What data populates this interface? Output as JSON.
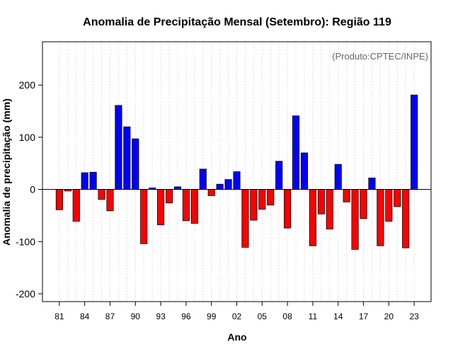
{
  "chart_data": {
    "type": "bar",
    "title": "Anomalia de Precipitação Mensal (Setembro): Região 119",
    "xlabel": "Ano",
    "ylabel": "Anomalia de precipitação (mm)",
    "credit": "(Produto:CPTEC/INPE)",
    "ylim": [
      -215,
      283
    ],
    "yticks": [
      -200,
      -100,
      0,
      100,
      200
    ],
    "ytick_labels": [
      "-200",
      "-100",
      "0",
      "100",
      "200"
    ],
    "xtick_labels": [
      "81",
      "84",
      "87",
      "90",
      "93",
      "96",
      "99",
      "02",
      "05",
      "08",
      "11",
      "14",
      "17",
      "20",
      "23"
    ],
    "xtick_years": [
      1981,
      1984,
      1987,
      1990,
      1993,
      1996,
      1999,
      2002,
      2005,
      2008,
      2011,
      2014,
      2017,
      2020,
      2023
    ],
    "grid": true,
    "positive_color": "#0000ff",
    "negative_color": "#ff0000",
    "years": [
      1981,
      1982,
      1983,
      1984,
      1985,
      1986,
      1987,
      1988,
      1989,
      1990,
      1991,
      1992,
      1993,
      1994,
      1995,
      1996,
      1997,
      1998,
      1999,
      2000,
      2001,
      2002,
      2003,
      2004,
      2005,
      2006,
      2007,
      2008,
      2009,
      2010,
      2011,
      2012,
      2013,
      2014,
      2015,
      2016,
      2017,
      2018,
      2019,
      2020,
      2021,
      2022,
      2023
    ],
    "values": [
      -39,
      -3,
      -61,
      32,
      33,
      -19,
      -41,
      161,
      120,
      97,
      -104,
      3,
      -68,
      -26,
      5,
      -60,
      -65,
      39,
      -12,
      10,
      19,
      34,
      -111,
      -59,
      -38,
      -30,
      54,
      -74,
      141,
      70,
      -108,
      -47,
      -76,
      48,
      -24,
      -115,
      -56,
      22,
      -108,
      -61,
      -33,
      -112,
      181
    ]
  }
}
